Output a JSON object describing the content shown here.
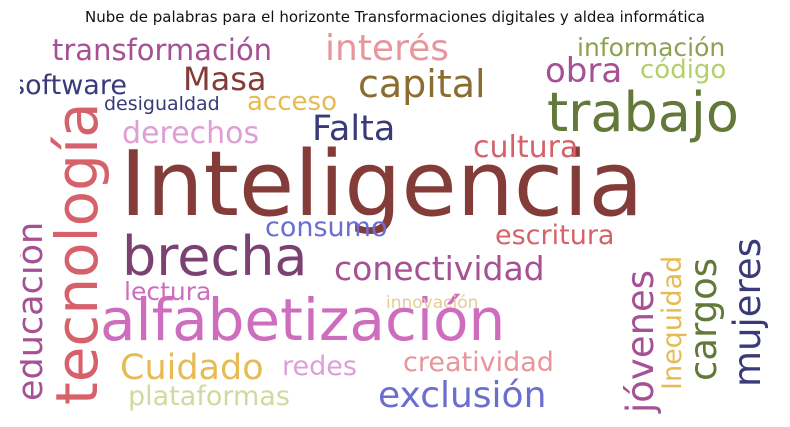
{
  "title": "Nube de palabras para el horizonte Transformaciones digitales y aldea informática",
  "words": {
    "inteligencia": {
      "text": "Inteligencia",
      "color": "#843c39"
    },
    "alfabetizacion": {
      "text": "alfabetización",
      "color": "#ce6dbd"
    },
    "tecnologia": {
      "text": "tecnología",
      "color": "#d6616b"
    },
    "trabajo": {
      "text": "trabajo",
      "color": "#637939"
    },
    "brecha": {
      "text": "brecha",
      "color": "#7b4173"
    },
    "capital": {
      "text": "capital",
      "color": "#8c6d31"
    },
    "interes": {
      "text": "interés",
      "color": "#e7969c"
    },
    "masa": {
      "text": "Masa",
      "color": "#843c39"
    },
    "falta": {
      "text": "Falta",
      "color": "#393b79"
    },
    "transformacion": {
      "text": "transformación",
      "color": "#a55194"
    },
    "software": {
      "text": "software",
      "color": "#393b79"
    },
    "informacion": {
      "text": "información",
      "color": "#8ca252"
    },
    "obra": {
      "text": "obra",
      "color": "#a55194"
    },
    "codigo": {
      "text": "código",
      "color": "#b5cf6b"
    },
    "acceso": {
      "text": "acceso",
      "color": "#e7ba52"
    },
    "desigualdad": {
      "text": "desigualdad",
      "color": "#393b79"
    },
    "derechos": {
      "text": "derechos",
      "color": "#de9ed6"
    },
    "cultura": {
      "text": "cultura",
      "color": "#d6616b"
    },
    "consumo": {
      "text": "consumo",
      "color": "#6b6ecf"
    },
    "escritura": {
      "text": "escritura",
      "color": "#d6616b"
    },
    "conectividad": {
      "text": "conectividad",
      "color": "#a55194"
    },
    "lectura": {
      "text": "lectura",
      "color": "#ce6dbd"
    },
    "innovacion": {
      "text": "innovación",
      "color": "#e7cb94"
    },
    "cuidado": {
      "text": "Cuidado",
      "color": "#e7ba52"
    },
    "redes": {
      "text": "redes",
      "color": "#de9ed6"
    },
    "creatividad": {
      "text": "creatividad",
      "color": "#e7969c"
    },
    "exclusion": {
      "text": "exclusión",
      "color": "#6b6ecf"
    },
    "plataformas": {
      "text": "plataformas",
      "color": "#cedb9c"
    },
    "educacion": {
      "text": "educación",
      "color": "#a55194"
    },
    "cargos": {
      "text": "cargos",
      "color": "#637939"
    },
    "mujeres": {
      "text": "mujeres",
      "color": "#393b79"
    },
    "jovenes": {
      "text": "jóvenes",
      "color": "#a55194"
    },
    "inequidad": {
      "text": "Inequidad",
      "color": "#e7ba52"
    }
  }
}
